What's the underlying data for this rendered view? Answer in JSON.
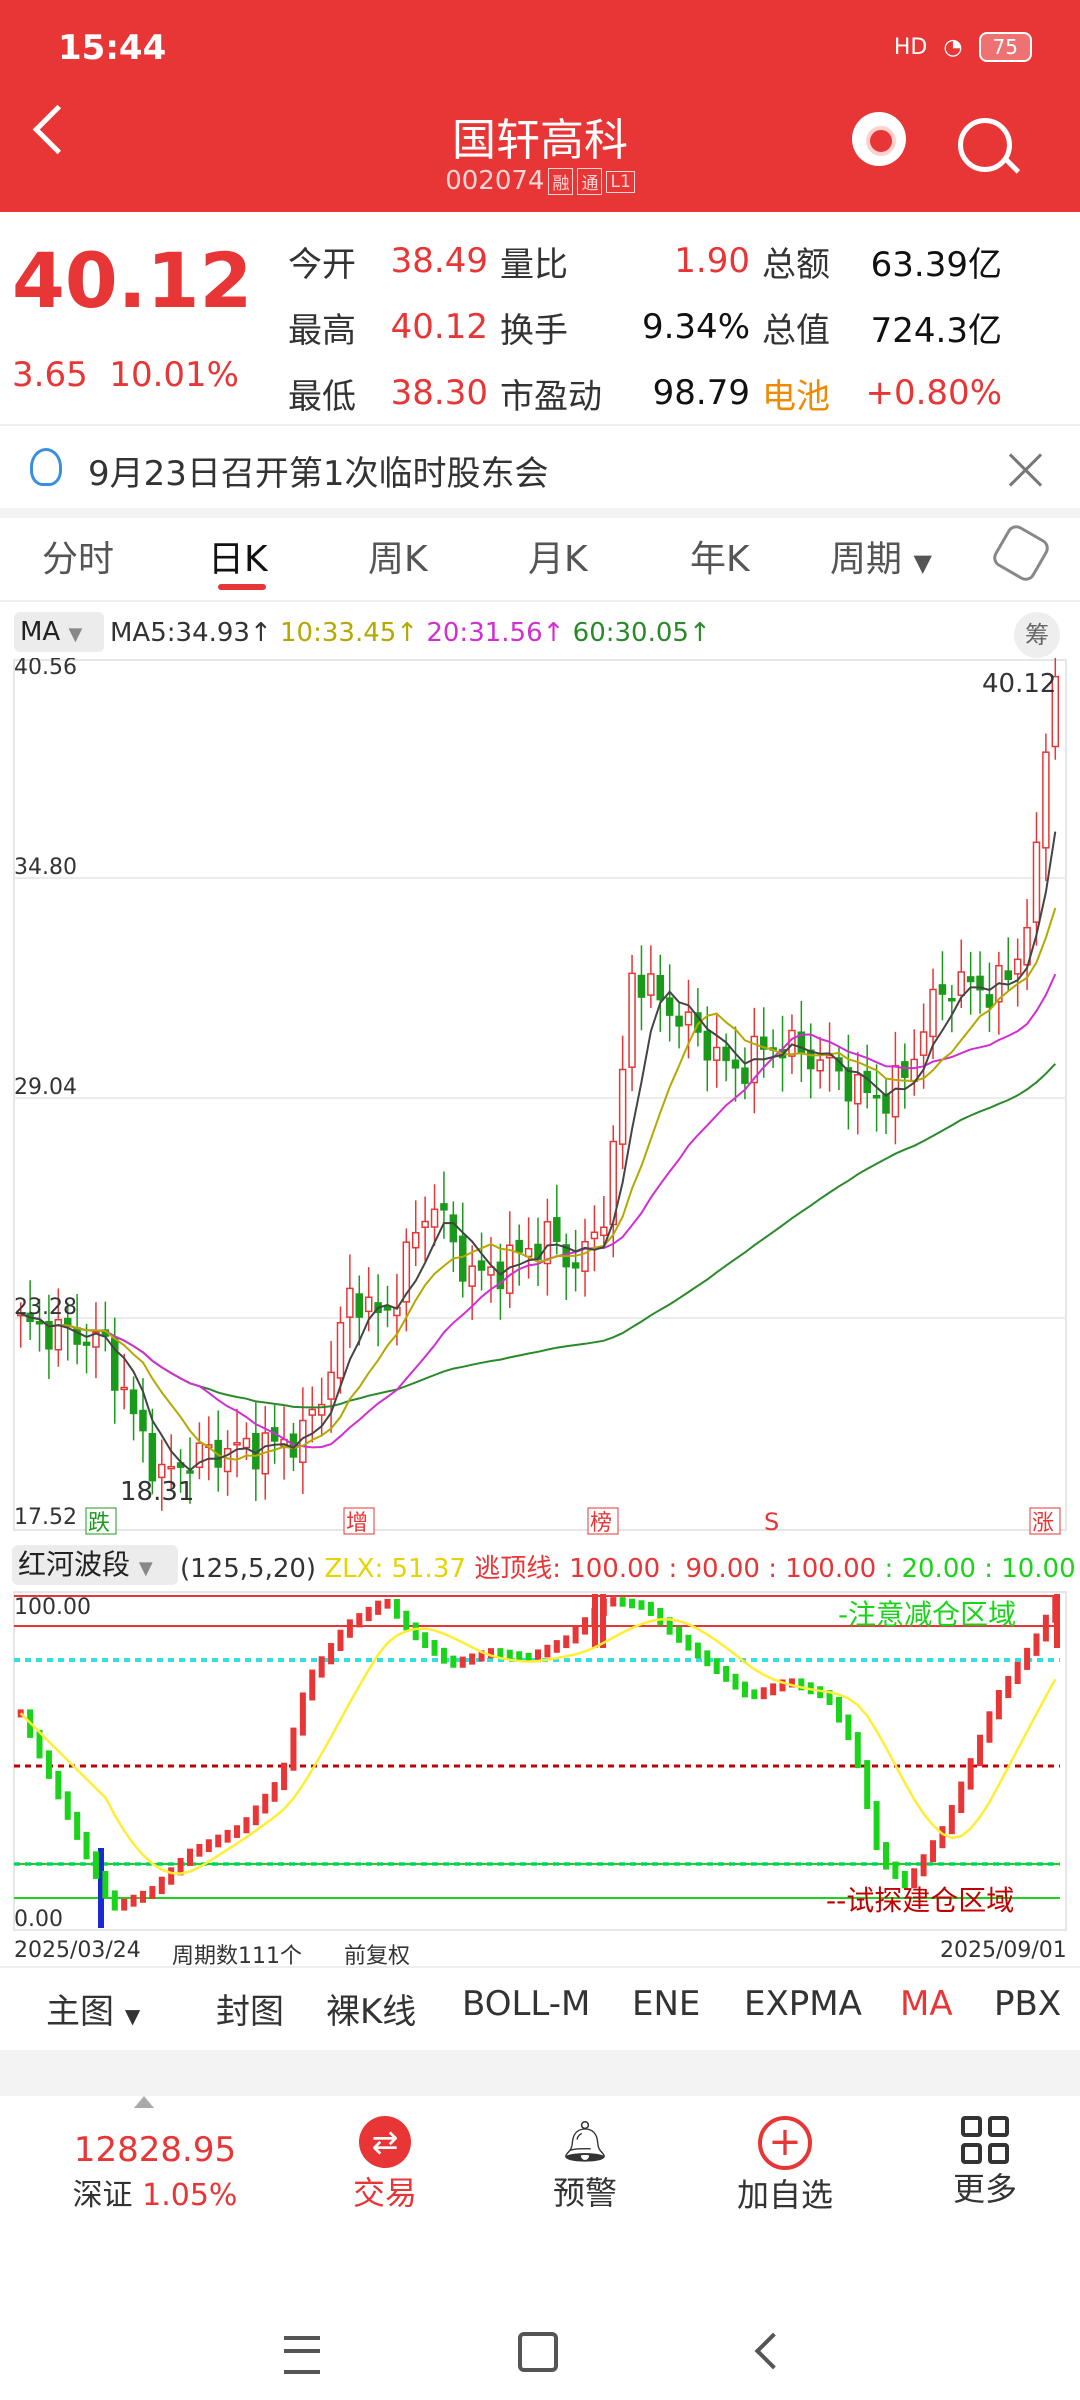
{
  "status": {
    "time": "15:44",
    "signal": "HD",
    "battery": "75"
  },
  "header": {
    "title": "国轩高科",
    "code": "002074",
    "tag1": "融",
    "tag2": "通",
    "tag3": "L1"
  },
  "quote": {
    "price": "40.12",
    "change": "3.65",
    "change_pct": "10.01%",
    "rows": [
      [
        {
          "l": "今开",
          "v": "38.49",
          "c": "red"
        },
        {
          "l": "量比",
          "v": "1.90",
          "c": "red"
        },
        {
          "l": "总额",
          "v": "63.39亿",
          "c": "blk"
        }
      ],
      [
        {
          "l": "最高",
          "v": "40.12",
          "c": "red"
        },
        {
          "l": "换手",
          "v": "9.34%",
          "c": "blk"
        },
        {
          "l": "总值",
          "v": "724.3亿",
          "c": "blk"
        }
      ],
      [
        {
          "l": "最低",
          "v": "38.30",
          "c": "red"
        },
        {
          "l": "市盈动",
          "v": "98.79",
          "c": "blk"
        },
        {
          "l": "电池",
          "v": "+0.80%",
          "c": "red"
        }
      ]
    ]
  },
  "notice": {
    "text": "9月23日召开第1次临时股东会"
  },
  "tabs": [
    "分时",
    "日K",
    "周K",
    "月K",
    "年K",
    "周期"
  ],
  "ma": {
    "selector": "MA",
    "ma5": "MA5:34.93↑",
    "ma10": "10:33.45↑",
    "ma20": "20:31.56↑",
    "ma60": "60:30.05↑",
    "chou": "筹",
    "colors": {
      "ma5": "#333333",
      "ma10": "#b5a800",
      "ma20": "#d12fd1",
      "ma60": "#2a8a2a"
    }
  },
  "kchart": {
    "y_labels": [
      "40.56",
      "34.80",
      "29.04",
      "23.28",
      "17.52"
    ],
    "last_label": "40.12",
    "low_label": "18.31",
    "markers": [
      "跌",
      "增",
      "榜",
      "S",
      "涨"
    ]
  },
  "indicator": {
    "selector": "红河波段",
    "params": "(125,5,20)",
    "zlx": "ZLX: 51.37",
    "escape": "逃顶线: 100.00",
    "v90": ": 90.00",
    "v100": ": 100.00",
    "v20": ": 20.00",
    "v10": ": 10.00",
    "top": "100.00",
    "bottom": "0.00",
    "reduce": "-注意减仓区域",
    "build": "--试探建仓区域"
  },
  "axis": {
    "start": "2025/03/24",
    "periods": "周期数111个",
    "adjust": "前复权",
    "end": "2025/09/01"
  },
  "bottom_tabs": [
    "主图",
    "封图",
    "裸K线",
    "BOLL-M",
    "ENE",
    "EXPMA",
    "MA",
    "PBX"
  ],
  "nav": {
    "index_value": "12828.95",
    "index_name": "深证",
    "index_pct": "1.05%",
    "trade": "交易",
    "alert": "预警",
    "add": "加自选",
    "more": "更多"
  }
}
